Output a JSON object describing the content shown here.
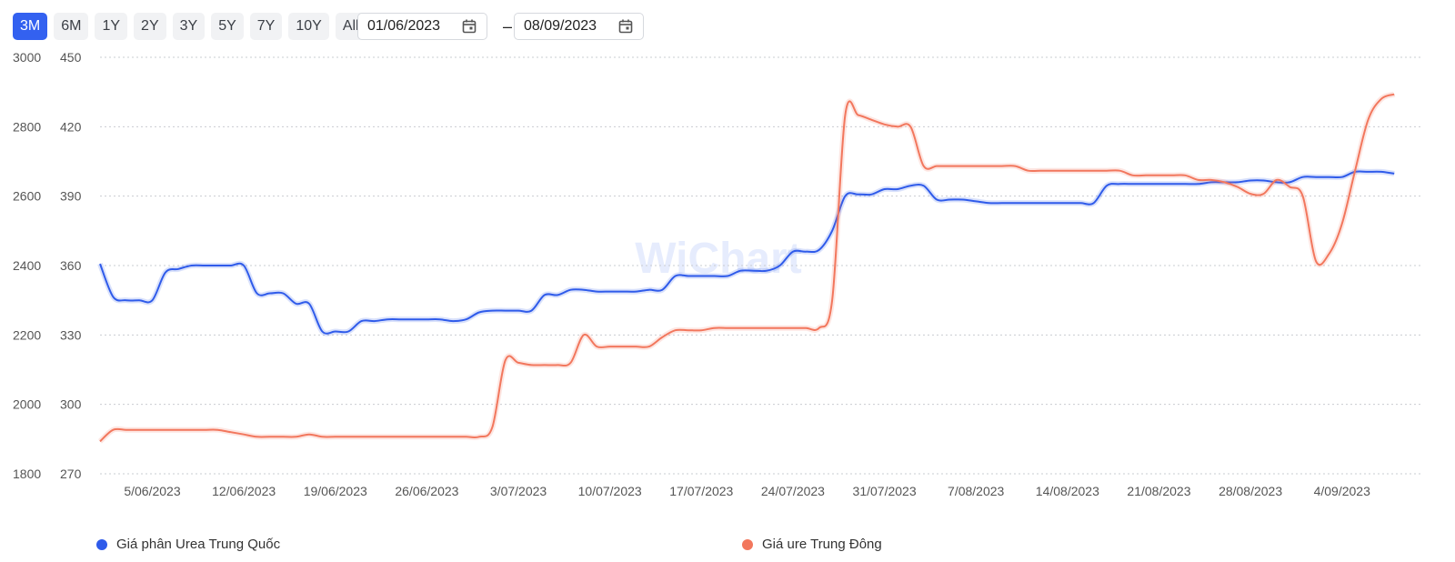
{
  "toolbar": {
    "ranges": [
      "3M",
      "6M",
      "1Y",
      "2Y",
      "3Y",
      "5Y",
      "7Y",
      "10Y",
      "All"
    ],
    "active_range": "3M",
    "start_date": "01/06/2023",
    "end_date": "08/09/2023",
    "separator": "–"
  },
  "watermark": "WiChart",
  "chart_data": {
    "type": "line",
    "title": "",
    "x_tick_labels": [
      "5/06/2023",
      "12/06/2023",
      "19/06/2023",
      "26/06/2023",
      "3/07/2023",
      "10/07/2023",
      "17/07/2023",
      "24/07/2023",
      "31/07/2023",
      "7/08/2023",
      "14/08/2023",
      "21/08/2023",
      "28/08/2023",
      "4/09/2023"
    ],
    "x_range": [
      "2023-06-01",
      "2023-09-10"
    ],
    "y_left": {
      "ticks": [
        1800,
        2000,
        2200,
        2400,
        2600,
        2800,
        3000
      ],
      "ylim": [
        1800,
        3000
      ]
    },
    "y_right": {
      "ticks": [
        270,
        300,
        330,
        360,
        390,
        420,
        450
      ],
      "ylim": [
        270,
        450
      ]
    },
    "grid": true,
    "legend_position": "bottom",
    "series": [
      {
        "name": "Giá phân Urea Trung Quốc",
        "color": "#2f5bea",
        "axis": "left",
        "points": [
          [
            "2023-06-01",
            2405
          ],
          [
            "2023-06-02",
            2310
          ],
          [
            "2023-06-03",
            2300
          ],
          [
            "2023-06-04",
            2300
          ],
          [
            "2023-06-05",
            2300
          ],
          [
            "2023-06-06",
            2380
          ],
          [
            "2023-06-07",
            2390
          ],
          [
            "2023-06-08",
            2400
          ],
          [
            "2023-06-09",
            2400
          ],
          [
            "2023-06-10",
            2400
          ],
          [
            "2023-06-11",
            2400
          ],
          [
            "2023-06-12",
            2400
          ],
          [
            "2023-06-13",
            2320
          ],
          [
            "2023-06-14",
            2320
          ],
          [
            "2023-06-15",
            2320
          ],
          [
            "2023-06-16",
            2290
          ],
          [
            "2023-06-17",
            2290
          ],
          [
            "2023-06-18",
            2210
          ],
          [
            "2023-06-19",
            2210
          ],
          [
            "2023-06-20",
            2210
          ],
          [
            "2023-06-21",
            2240
          ],
          [
            "2023-06-22",
            2240
          ],
          [
            "2023-06-23",
            2245
          ],
          [
            "2023-06-24",
            2245
          ],
          [
            "2023-06-25",
            2245
          ],
          [
            "2023-06-26",
            2245
          ],
          [
            "2023-06-27",
            2245
          ],
          [
            "2023-06-28",
            2240
          ],
          [
            "2023-06-29",
            2245
          ],
          [
            "2023-06-30",
            2265
          ],
          [
            "2023-07-01",
            2270
          ],
          [
            "2023-07-02",
            2270
          ],
          [
            "2023-07-03",
            2270
          ],
          [
            "2023-07-04",
            2270
          ],
          [
            "2023-07-05",
            2315
          ],
          [
            "2023-07-06",
            2315
          ],
          [
            "2023-07-07",
            2330
          ],
          [
            "2023-07-08",
            2330
          ],
          [
            "2023-07-09",
            2325
          ],
          [
            "2023-07-10",
            2325
          ],
          [
            "2023-07-11",
            2325
          ],
          [
            "2023-07-12",
            2325
          ],
          [
            "2023-07-13",
            2330
          ],
          [
            "2023-07-14",
            2330
          ],
          [
            "2023-07-15",
            2370
          ],
          [
            "2023-07-16",
            2370
          ],
          [
            "2023-07-17",
            2370
          ],
          [
            "2023-07-18",
            2370
          ],
          [
            "2023-07-19",
            2370
          ],
          [
            "2023-07-20",
            2385
          ],
          [
            "2023-07-21",
            2385
          ],
          [
            "2023-07-22",
            2385
          ],
          [
            "2023-07-23",
            2400
          ],
          [
            "2023-07-24",
            2440
          ],
          [
            "2023-07-25",
            2440
          ],
          [
            "2023-07-26",
            2445
          ],
          [
            "2023-07-27",
            2500
          ],
          [
            "2023-07-28",
            2600
          ],
          [
            "2023-07-29",
            2605
          ],
          [
            "2023-07-30",
            2605
          ],
          [
            "2023-07-31",
            2620
          ],
          [
            "2023-08-01",
            2620
          ],
          [
            "2023-08-02",
            2630
          ],
          [
            "2023-08-03",
            2630
          ],
          [
            "2023-08-04",
            2590
          ],
          [
            "2023-08-05",
            2590
          ],
          [
            "2023-08-06",
            2590
          ],
          [
            "2023-08-07",
            2585
          ],
          [
            "2023-08-08",
            2580
          ],
          [
            "2023-08-09",
            2580
          ],
          [
            "2023-08-10",
            2580
          ],
          [
            "2023-08-11",
            2580
          ],
          [
            "2023-08-12",
            2580
          ],
          [
            "2023-08-13",
            2580
          ],
          [
            "2023-08-14",
            2580
          ],
          [
            "2023-08-15",
            2580
          ],
          [
            "2023-08-16",
            2580
          ],
          [
            "2023-08-17",
            2630
          ],
          [
            "2023-08-18",
            2635
          ],
          [
            "2023-08-19",
            2635
          ],
          [
            "2023-08-20",
            2635
          ],
          [
            "2023-08-21",
            2635
          ],
          [
            "2023-08-22",
            2635
          ],
          [
            "2023-08-23",
            2635
          ],
          [
            "2023-08-24",
            2635
          ],
          [
            "2023-08-25",
            2640
          ],
          [
            "2023-08-26",
            2640
          ],
          [
            "2023-08-27",
            2640
          ],
          [
            "2023-08-28",
            2645
          ],
          [
            "2023-08-29",
            2645
          ],
          [
            "2023-08-30",
            2640
          ],
          [
            "2023-08-31",
            2640
          ],
          [
            "2023-09-01",
            2655
          ],
          [
            "2023-09-02",
            2655
          ],
          [
            "2023-09-03",
            2655
          ],
          [
            "2023-09-04",
            2655
          ],
          [
            "2023-09-05",
            2670
          ],
          [
            "2023-09-06",
            2670
          ],
          [
            "2023-09-07",
            2670
          ],
          [
            "2023-09-08",
            2665
          ]
        ]
      },
      {
        "name": "Giá ure Trung Đông",
        "color": "#f2775d",
        "axis": "right",
        "points": [
          [
            "2023-06-01",
            284
          ],
          [
            "2023-06-02",
            289
          ],
          [
            "2023-06-03",
            289
          ],
          [
            "2023-06-04",
            289
          ],
          [
            "2023-06-05",
            289
          ],
          [
            "2023-06-06",
            289
          ],
          [
            "2023-06-07",
            289
          ],
          [
            "2023-06-08",
            289
          ],
          [
            "2023-06-09",
            289
          ],
          [
            "2023-06-10",
            289
          ],
          [
            "2023-06-11",
            288
          ],
          [
            "2023-06-12",
            287
          ],
          [
            "2023-06-13",
            286
          ],
          [
            "2023-06-14",
            286
          ],
          [
            "2023-06-15",
            286
          ],
          [
            "2023-06-16",
            286
          ],
          [
            "2023-06-17",
            287
          ],
          [
            "2023-06-18",
            286
          ],
          [
            "2023-06-19",
            286
          ],
          [
            "2023-06-20",
            286
          ],
          [
            "2023-06-21",
            286
          ],
          [
            "2023-06-22",
            286
          ],
          [
            "2023-06-23",
            286
          ],
          [
            "2023-06-24",
            286
          ],
          [
            "2023-06-25",
            286
          ],
          [
            "2023-06-26",
            286
          ],
          [
            "2023-06-27",
            286
          ],
          [
            "2023-06-28",
            286
          ],
          [
            "2023-06-29",
            286
          ],
          [
            "2023-06-30",
            286
          ],
          [
            "2023-07-01",
            290
          ],
          [
            "2023-07-02",
            319
          ],
          [
            "2023-07-03",
            318
          ],
          [
            "2023-07-04",
            317
          ],
          [
            "2023-07-05",
            317
          ],
          [
            "2023-07-06",
            317
          ],
          [
            "2023-07-07",
            318
          ],
          [
            "2023-07-08",
            330
          ],
          [
            "2023-07-09",
            325
          ],
          [
            "2023-07-10",
            325
          ],
          [
            "2023-07-11",
            325
          ],
          [
            "2023-07-12",
            325
          ],
          [
            "2023-07-13",
            325
          ],
          [
            "2023-07-14",
            329
          ],
          [
            "2023-07-15",
            332
          ],
          [
            "2023-07-16",
            332
          ],
          [
            "2023-07-17",
            332
          ],
          [
            "2023-07-18",
            333
          ],
          [
            "2023-07-19",
            333
          ],
          [
            "2023-07-20",
            333
          ],
          [
            "2023-07-21",
            333
          ],
          [
            "2023-07-22",
            333
          ],
          [
            "2023-07-23",
            333
          ],
          [
            "2023-07-24",
            333
          ],
          [
            "2023-07-25",
            333
          ],
          [
            "2023-07-26",
            333
          ],
          [
            "2023-07-27",
            345
          ],
          [
            "2023-07-28",
            425
          ],
          [
            "2023-07-29",
            425
          ],
          [
            "2023-07-30",
            423
          ],
          [
            "2023-07-31",
            421
          ],
          [
            "2023-08-01",
            420
          ],
          [
            "2023-08-02",
            420
          ],
          [
            "2023-08-03",
            403
          ],
          [
            "2023-08-04",
            403
          ],
          [
            "2023-08-05",
            403
          ],
          [
            "2023-08-06",
            403
          ],
          [
            "2023-08-07",
            403
          ],
          [
            "2023-08-08",
            403
          ],
          [
            "2023-08-09",
            403
          ],
          [
            "2023-08-10",
            403
          ],
          [
            "2023-08-11",
            401
          ],
          [
            "2023-08-12",
            401
          ],
          [
            "2023-08-13",
            401
          ],
          [
            "2023-08-14",
            401
          ],
          [
            "2023-08-15",
            401
          ],
          [
            "2023-08-16",
            401
          ],
          [
            "2023-08-17",
            401
          ],
          [
            "2023-08-18",
            401
          ],
          [
            "2023-08-19",
            399
          ],
          [
            "2023-08-20",
            399
          ],
          [
            "2023-08-21",
            399
          ],
          [
            "2023-08-22",
            399
          ],
          [
            "2023-08-23",
            399
          ],
          [
            "2023-08-24",
            397
          ],
          [
            "2023-08-25",
            397
          ],
          [
            "2023-08-26",
            396
          ],
          [
            "2023-08-27",
            394
          ],
          [
            "2023-08-28",
            391
          ],
          [
            "2023-08-29",
            391
          ],
          [
            "2023-08-30",
            397
          ],
          [
            "2023-08-31",
            394
          ],
          [
            "2023-09-01",
            390
          ],
          [
            "2023-09-02",
            362
          ],
          [
            "2023-09-03",
            365
          ],
          [
            "2023-09-04",
            378
          ],
          [
            "2023-09-05",
            401
          ],
          [
            "2023-09-06",
            423
          ],
          [
            "2023-09-07",
            432
          ],
          [
            "2023-09-08",
            434
          ]
        ]
      }
    ]
  }
}
